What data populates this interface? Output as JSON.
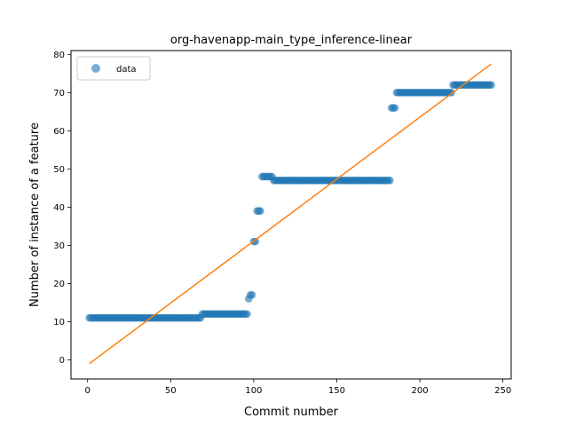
{
  "chart_data": {
    "type": "scatter",
    "title": "org-havenapp-main_type_inference-linear",
    "xlabel": "Commit number",
    "ylabel": "Number of instance of a feature",
    "xlim": [
      -10,
      255
    ],
    "ylim": [
      -5,
      81
    ],
    "x_ticks": [
      0,
      50,
      100,
      150,
      200,
      250
    ],
    "y_ticks": [
      0,
      10,
      20,
      30,
      40,
      50,
      60,
      70,
      80
    ],
    "x_tick_labels": [
      "0",
      "50",
      "100",
      "150",
      "200",
      "250"
    ],
    "y_tick_labels": [
      "0",
      "10",
      "20",
      "30",
      "40",
      "50",
      "60",
      "70",
      "80"
    ],
    "legend": {
      "position": "upper-left",
      "entries": [
        "data"
      ]
    },
    "grid": false,
    "colors": {
      "data": "#1f77b4",
      "fit": "#ff7f0e"
    },
    "segments": [
      {
        "x_start": 1,
        "x_end": 68,
        "y": 11
      },
      {
        "x_start": 69,
        "x_end": 96,
        "y": 12
      },
      {
        "x_start": 97,
        "x_end": 97,
        "y": 16
      },
      {
        "x_start": 98,
        "x_end": 99,
        "y": 17
      },
      {
        "x_start": 100,
        "x_end": 101,
        "y": 31
      },
      {
        "x_start": 102,
        "x_end": 104,
        "y": 39
      },
      {
        "x_start": 105,
        "x_end": 111,
        "y": 48
      },
      {
        "x_start": 112,
        "x_end": 182,
        "y": 47
      },
      {
        "x_start": 183,
        "x_end": 185,
        "y": 66
      },
      {
        "x_start": 186,
        "x_end": 219,
        "y": 70
      },
      {
        "x_start": 220,
        "x_end": 243,
        "y": 72
      }
    ],
    "fit_line": {
      "x": [
        1,
        243
      ],
      "y": [
        -1,
        77.5
      ]
    }
  }
}
